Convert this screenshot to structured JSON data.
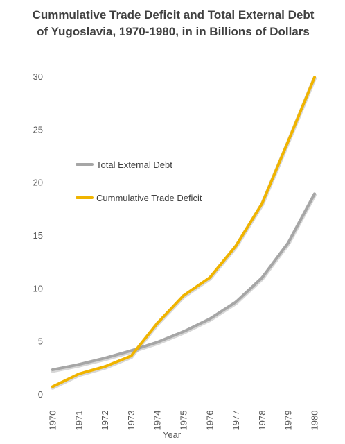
{
  "chart_data": {
    "type": "line",
    "title": "Cummulative Trade Deficit and Total External Debt of Yugoslavia, 1970-1980, in in Billions of Dollars",
    "xlabel": "Year",
    "ylabel": "",
    "categories": [
      "1970",
      "1971",
      "1972",
      "1973",
      "1974",
      "1975",
      "1976",
      "1977",
      "1978",
      "1979",
      "1980"
    ],
    "ylim": [
      0,
      30
    ],
    "yticks": [
      0,
      5,
      10,
      15,
      20,
      25,
      30
    ],
    "grid": false,
    "legend_position": "left",
    "series": [
      {
        "name": "Total External Debt",
        "color": "#a6a6a6",
        "values": [
          2.3,
          2.8,
          3.4,
          4.1,
          4.9,
          5.9,
          7.1,
          8.7,
          11.0,
          14.3,
          18.9
        ]
      },
      {
        "name": "Cummulative Trade Deficit",
        "color": "#f0b400",
        "values": [
          0.7,
          1.9,
          2.6,
          3.6,
          6.7,
          9.3,
          11.0,
          14.0,
          18.0,
          23.9,
          29.9
        ]
      }
    ]
  }
}
